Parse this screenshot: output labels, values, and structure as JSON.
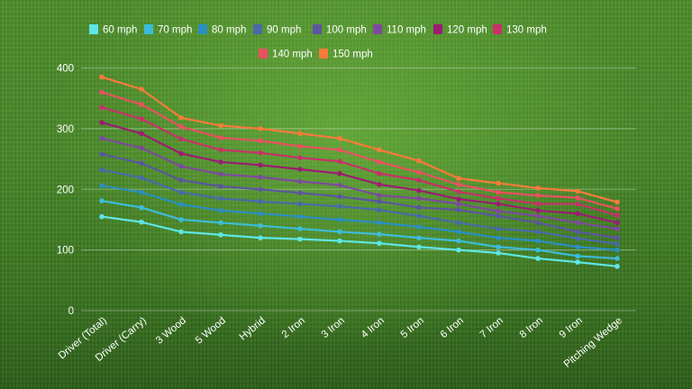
{
  "chart_data": {
    "type": "line",
    "title": "",
    "xlabel": "",
    "ylabel": "",
    "ylim": [
      0,
      400
    ],
    "yticks": [
      0,
      100,
      200,
      300,
      400
    ],
    "grid": true,
    "legend_position": "top",
    "categories": [
      "Driver (Total)",
      "Driver (Carry)",
      "3 Wood",
      "5 Wood",
      "Hybrid",
      "2 Iron",
      "3 Iron",
      "4 Iron",
      "5 Iron",
      "6 Iron",
      "7 Iron",
      "8 Iron",
      "9 Iron",
      "Pitching Wedge"
    ],
    "series": [
      {
        "name": "60 mph",
        "color": "#5ee6e6",
        "values": [
          155,
          146,
          130,
          125,
          120,
          118,
          115,
          111,
          105,
          100,
          95,
          86,
          80,
          73
        ]
      },
      {
        "name": "70 mph",
        "color": "#3cbcd8",
        "values": [
          181,
          170,
          150,
          145,
          140,
          135,
          130,
          126,
          120,
          115,
          105,
          100,
          90,
          86
        ]
      },
      {
        "name": "80 mph",
        "color": "#2a8fc2",
        "values": [
          206,
          195,
          175,
          165,
          160,
          155,
          150,
          145,
          138,
          130,
          120,
          115,
          105,
          100
        ]
      },
      {
        "name": "90 mph",
        "color": "#4a6aa8",
        "values": [
          232,
          219,
          195,
          185,
          180,
          176,
          172,
          166,
          156,
          145,
          135,
          130,
          119,
          110
        ]
      },
      {
        "name": "100 mph",
        "color": "#5c56a0",
        "values": [
          258,
          243,
          215,
          205,
          200,
          194,
          188,
          180,
          170,
          166,
          156,
          145,
          130,
          120
        ]
      },
      {
        "name": "110 mph",
        "color": "#7e4a9e",
        "values": [
          284,
          268,
          238,
          225,
          220,
          213,
          207,
          190,
          185,
          176,
          164,
          156,
          145,
          135
        ]
      },
      {
        "name": "120 mph",
        "color": "#9c1c72",
        "values": [
          310,
          292,
          259,
          245,
          240,
          233,
          226,
          208,
          198,
          184,
          176,
          165,
          160,
          145
        ]
      },
      {
        "name": "130 mph",
        "color": "#c8306a",
        "values": [
          335,
          316,
          283,
          265,
          260,
          252,
          246,
          226,
          215,
          196,
          185,
          176,
          176,
          157
        ]
      },
      {
        "name": "140 mph",
        "color": "#ea5060",
        "values": [
          360,
          340,
          303,
          285,
          280,
          271,
          265,
          245,
          228,
          208,
          195,
          190,
          186,
          168
        ]
      },
      {
        "name": "150 mph",
        "color": "#f77b3a",
        "values": [
          385,
          365,
          318,
          305,
          300,
          292,
          284,
          265,
          247,
          218,
          210,
          202,
          197,
          179
        ]
      }
    ]
  }
}
